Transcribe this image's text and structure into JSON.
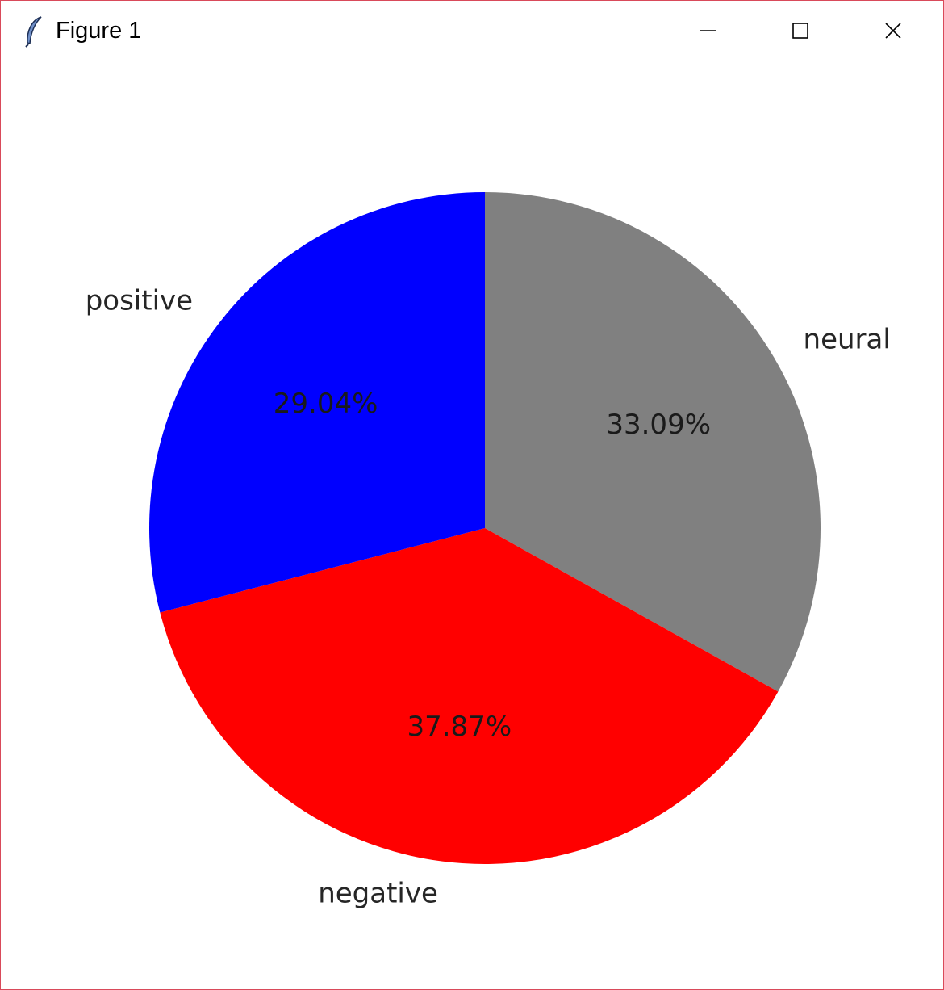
{
  "window": {
    "title": "Figure 1",
    "icon": "feather-icon",
    "controls": {
      "minimize": "minimize-icon",
      "maximize": "maximize-icon",
      "close": "close-icon"
    }
  },
  "colors": {
    "neural": "#808080",
    "negative": "#ff0000",
    "positive": "#0000ff",
    "window_border": "#d94a5a"
  },
  "chart_data": {
    "type": "pie",
    "title": "",
    "start_angle_deg": 90,
    "direction": "clockwise",
    "slices": [
      {
        "label": "neural",
        "value": 33.09,
        "pct_label": "33.09%",
        "color": "#808080"
      },
      {
        "label": "negative",
        "value": 37.87,
        "pct_label": "37.87%",
        "color": "#ff0000"
      },
      {
        "label": "positive",
        "value": 29.04,
        "pct_label": "29.04%",
        "color": "#0000ff"
      }
    ]
  }
}
